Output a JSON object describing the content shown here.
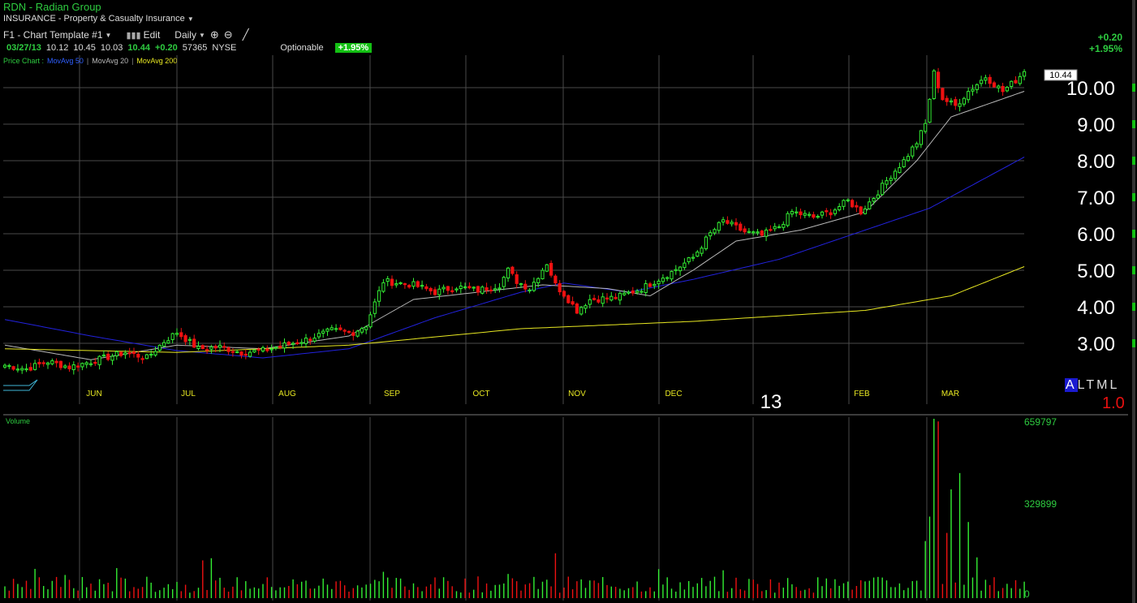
{
  "header": {
    "title": "RDN - Radian Group",
    "sector": "INSURANCE - Property & Casualty Insurance"
  },
  "toolbar": {
    "template": "F1 - Chart Template #1",
    "edit_label": "Edit",
    "period": "Daily",
    "icons": [
      "bar-chart-icon",
      "zoom-in-icon",
      "zoom-out-icon",
      "draw-line-icon"
    ]
  },
  "quote": {
    "date": "03/27/13",
    "open": "10.12",
    "high": "10.45",
    "low": "10.03",
    "last": "10.44",
    "change": "+0.20",
    "volume": "57365",
    "exchange": "NYSE",
    "optionable": "Optionable",
    "pct_badge": "+1.95%"
  },
  "legend": {
    "price_chart": "Price Chart :",
    "ma50": "MovAvg 50",
    "ma20": "MovAvg 20",
    "ma200": "MovAvg 200"
  },
  "right_change": {
    "change": "+0.20",
    "pct": "+1.95%"
  },
  "controls": {
    "altml": [
      "A",
      "L",
      "T",
      "M",
      "L"
    ],
    "selected": "A",
    "scale_label": "1.0"
  },
  "colors": {
    "up": "#33ee33",
    "down": "#ee1111",
    "ma50": "#2222dd",
    "ma20": "#b8b8b8",
    "ma200": "#e8e822",
    "grid": "#4a4a4a",
    "months": "#e8e822"
  },
  "chart_data": {
    "type": "candlestick",
    "price_axis": {
      "ticks": [
        "3.00",
        "4.00",
        "5.00",
        "6.00",
        "7.00",
        "8.00",
        "9.00",
        "10.00"
      ],
      "range": [
        2.0,
        11.0
      ]
    },
    "last_price_tag": "10.44",
    "months": [
      "JUN",
      "JUL",
      "AUG",
      "SEP",
      "OCT",
      "NOV",
      "DEC",
      "FEB",
      "MAR"
    ],
    "year_label": "13",
    "volume": {
      "label": "Volume",
      "ticks": [
        "659797",
        "329899",
        "0"
      ],
      "max": 659797
    },
    "anchors": [
      [
        0,
        2.4
      ],
      [
        5,
        2.3
      ],
      [
        10,
        2.5
      ],
      [
        15,
        2.35
      ],
      [
        20,
        2.5
      ],
      [
        28,
        2.75
      ],
      [
        33,
        2.6
      ],
      [
        37,
        3.05
      ],
      [
        40,
        3.3
      ],
      [
        45,
        2.85
      ],
      [
        50,
        2.9
      ],
      [
        55,
        2.75
      ],
      [
        60,
        2.8
      ],
      [
        65,
        2.95
      ],
      [
        70,
        3.1
      ],
      [
        76,
        3.35
      ],
      [
        81,
        3.3
      ],
      [
        84,
        3.5
      ],
      [
        88,
        4.7
      ],
      [
        95,
        4.6
      ],
      [
        100,
        4.4
      ],
      [
        105,
        4.55
      ],
      [
        110,
        4.45
      ],
      [
        115,
        4.6
      ],
      [
        117,
        5.0
      ],
      [
        119,
        4.7
      ],
      [
        122,
        4.5
      ],
      [
        126,
        5.2
      ],
      [
        128,
        4.6
      ],
      [
        130,
        4.35
      ],
      [
        133,
        3.9
      ],
      [
        136,
        4.2
      ],
      [
        142,
        4.25
      ],
      [
        148,
        4.5
      ],
      [
        155,
        4.95
      ],
      [
        160,
        5.35
      ],
      [
        164,
        6.0
      ],
      [
        167,
        6.35
      ],
      [
        172,
        6.05
      ],
      [
        176,
        5.95
      ],
      [
        180,
        6.2
      ],
      [
        183,
        6.6
      ],
      [
        188,
        6.45
      ],
      [
        192,
        6.6
      ],
      [
        196,
        6.9
      ],
      [
        199,
        6.6
      ],
      [
        202,
        7.0
      ],
      [
        206,
        7.6
      ],
      [
        209,
        8.0
      ],
      [
        212,
        8.5
      ],
      [
        214,
        9.0
      ],
      [
        216,
        10.4
      ],
      [
        218,
        9.7
      ],
      [
        221,
        9.5
      ],
      [
        224,
        9.9
      ],
      [
        228,
        10.3
      ],
      [
        232,
        9.9
      ],
      [
        235,
        10.2
      ],
      [
        237,
        10.44
      ]
    ],
    "ma_series": [
      {
        "name": "MovAvg 50",
        "points": [
          [
            0,
            3.65
          ],
          [
            20,
            3.2
          ],
          [
            40,
            2.8
          ],
          [
            60,
            2.6
          ],
          [
            80,
            2.85
          ],
          [
            100,
            3.7
          ],
          [
            120,
            4.4
          ],
          [
            130,
            4.65
          ],
          [
            145,
            4.4
          ],
          [
            160,
            4.75
          ],
          [
            180,
            5.3
          ],
          [
            200,
            6.1
          ],
          [
            215,
            6.7
          ],
          [
            237,
            8.1
          ]
        ]
      },
      {
        "name": "MovAvg 20",
        "points": [
          [
            0,
            2.95
          ],
          [
            20,
            2.55
          ],
          [
            40,
            2.95
          ],
          [
            60,
            2.85
          ],
          [
            80,
            3.2
          ],
          [
            95,
            4.2
          ],
          [
            110,
            4.4
          ],
          [
            125,
            4.6
          ],
          [
            140,
            4.5
          ],
          [
            150,
            4.3
          ],
          [
            160,
            5.0
          ],
          [
            170,
            5.8
          ],
          [
            185,
            6.1
          ],
          [
            200,
            6.6
          ],
          [
            212,
            8.0
          ],
          [
            220,
            9.2
          ],
          [
            237,
            9.9
          ]
        ]
      },
      {
        "name": "MovAvg 200",
        "points": [
          [
            0,
            2.85
          ],
          [
            40,
            2.75
          ],
          [
            80,
            2.95
          ],
          [
            120,
            3.4
          ],
          [
            160,
            3.6
          ],
          [
            200,
            3.9
          ],
          [
            220,
            4.3
          ],
          [
            237,
            5.1
          ]
        ]
      }
    ]
  }
}
